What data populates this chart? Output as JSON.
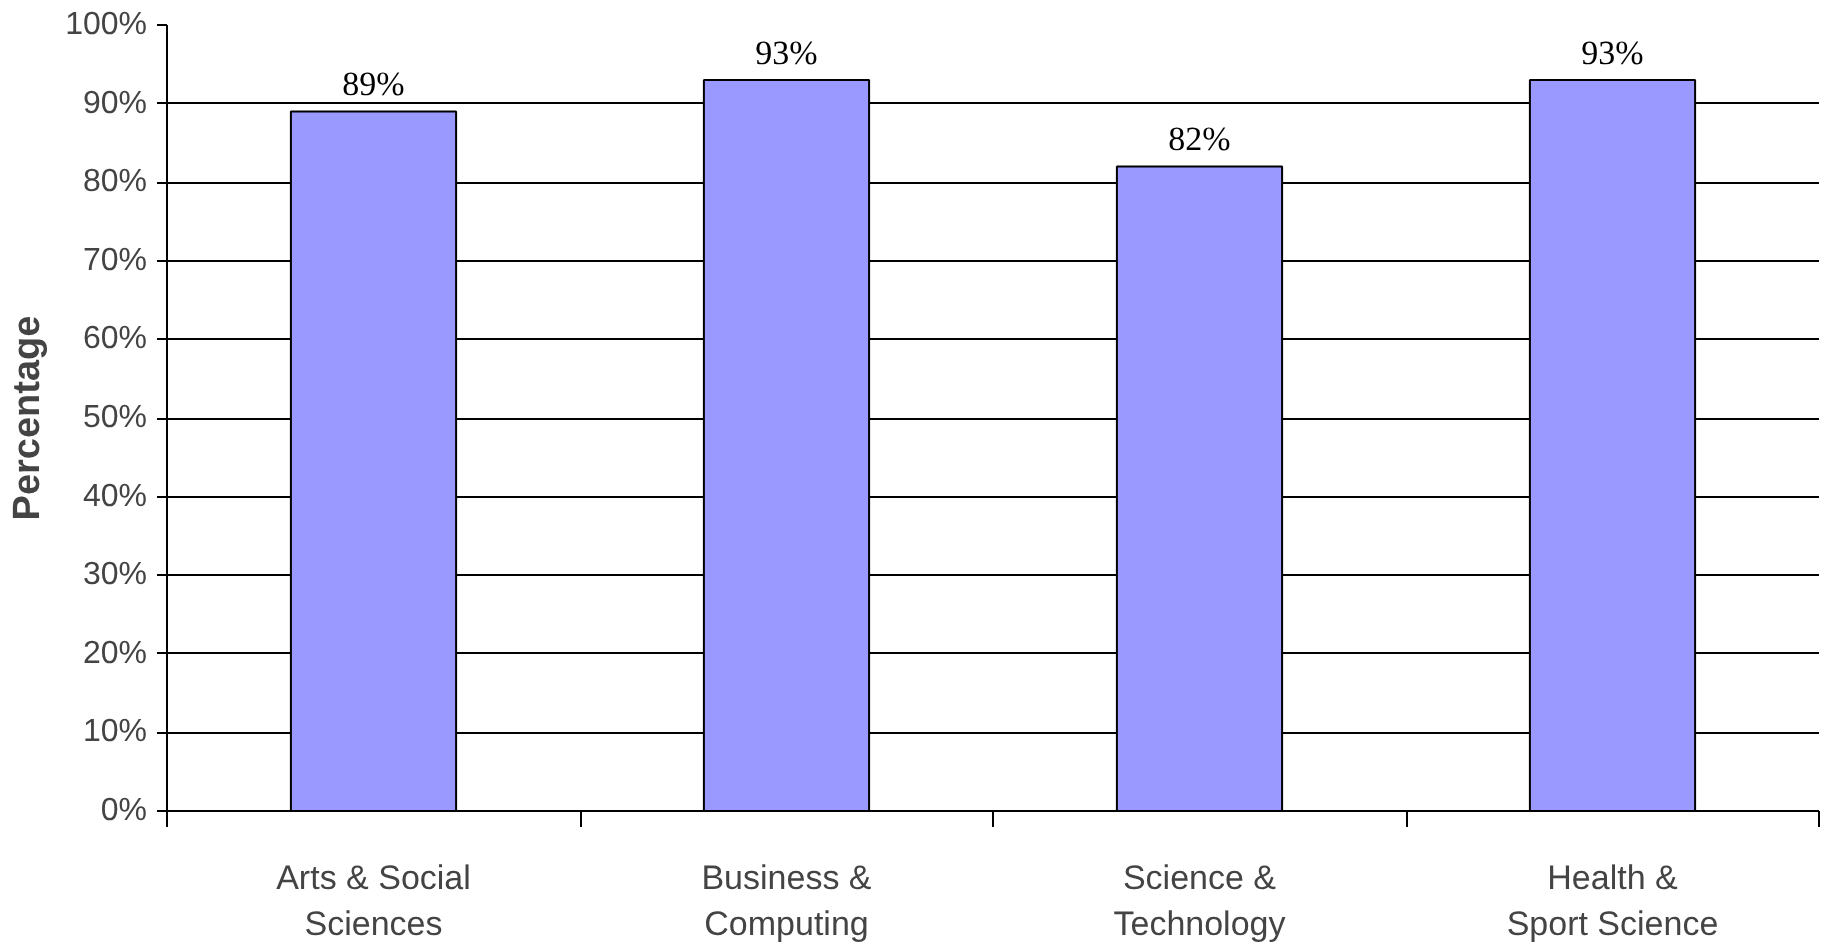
{
  "chart_data": {
    "type": "bar",
    "ylabel": "Percentage",
    "categories": [
      "Arts & Social\nSciences",
      "Business &\nComputing",
      "Science &\nTechnology",
      "Health &\nSport Science"
    ],
    "values": [
      89,
      93,
      82,
      93
    ],
    "color": "#9999ff",
    "value_labels": [
      "89%",
      "93%",
      "82%",
      "93%"
    ],
    "ylim": [
      0,
      100
    ],
    "yticks": [
      {
        "value": 0,
        "label": "0%"
      },
      {
        "value": 10,
        "label": "10%"
      },
      {
        "value": 20,
        "label": "20%"
      },
      {
        "value": 30,
        "label": "30%"
      },
      {
        "value": 40,
        "label": "40%"
      },
      {
        "value": 50,
        "label": "50%"
      },
      {
        "value": 60,
        "label": "60%"
      },
      {
        "value": 70,
        "label": "70%"
      },
      {
        "value": 80,
        "label": "80%"
      },
      {
        "value": 90,
        "label": "90%"
      },
      {
        "value": 100,
        "label": "100%"
      }
    ],
    "grid": "y"
  }
}
